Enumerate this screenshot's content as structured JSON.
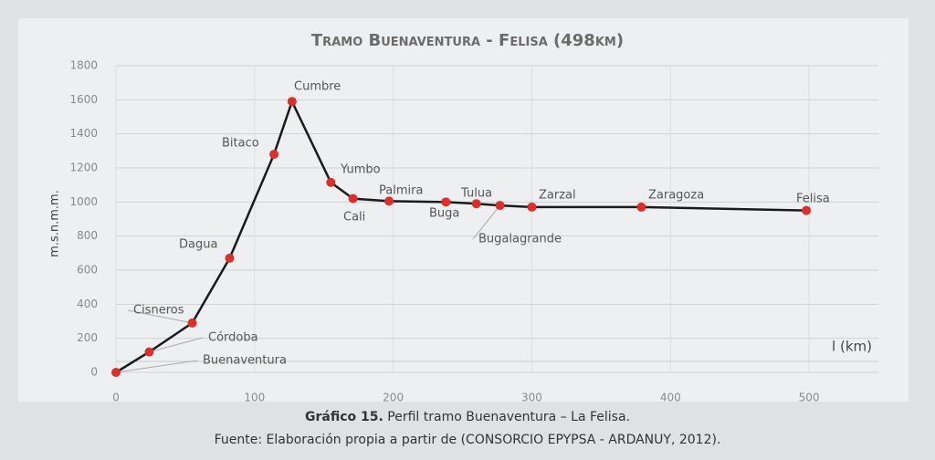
{
  "chart_data": {
    "type": "line",
    "title": "Tramo Buenaventura - Felisa (498km)",
    "x_label": "l (km)",
    "y_label": "m.s.n.m.m.",
    "x": [
      0,
      24,
      55,
      82,
      114,
      127,
      155,
      171,
      197,
      238,
      260,
      277,
      300,
      379,
      498
    ],
    "series": [
      {
        "name": "Perfil",
        "color": "#1a1a1a",
        "marker_color": "#d9302c",
        "values": [
          0,
          120,
          290,
          670,
          1280,
          1590,
          1115,
          1020,
          1005,
          1000,
          990,
          980,
          970,
          970,
          950
        ],
        "point_labels": [
          "Buenaventura",
          "Córdoba",
          "Cisneros",
          "Dagua",
          "Bitaco",
          "Cumbre",
          "Yumbo",
          "Cali",
          "Palmira",
          "Buga",
          "Tulua",
          "Bugalagrande",
          "Zarzal",
          "Zaragoza",
          "Felisa"
        ]
      }
    ],
    "xlim": [
      0,
      550
    ],
    "xticks": [
      0,
      100,
      200,
      300,
      400,
      500
    ],
    "ylim": [
      0,
      1800
    ],
    "yticks": [
      0,
      200,
      400,
      600,
      800,
      1000,
      1200,
      1400,
      1600,
      1800
    ],
    "grid": true
  },
  "caption": {
    "number": "Gráfico 15.",
    "text": " Perfil tramo Buenaventura – La Felisa.",
    "source": "Fuente: Elaboración propia a partir de (CONSORCIO EPYPSA - ARDANUY, 2012)."
  }
}
